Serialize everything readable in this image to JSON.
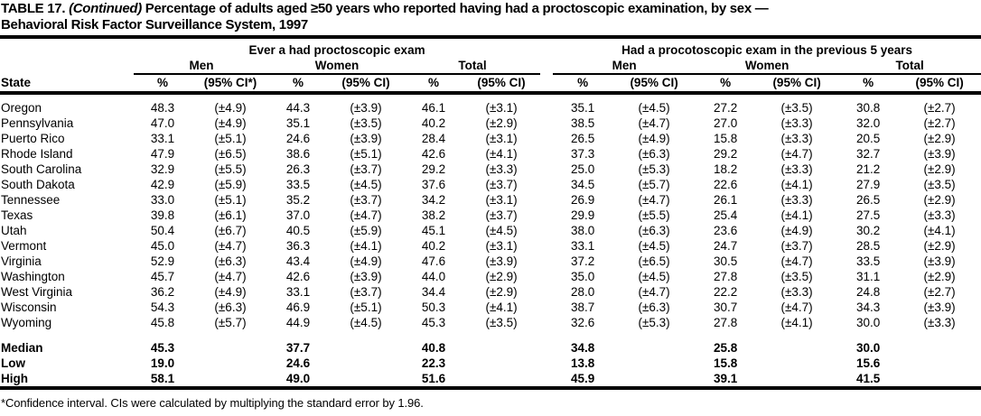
{
  "colors": {
    "text": "#000000",
    "background": "#ffffff",
    "rule": "#000000"
  },
  "title": {
    "line1_prefix": "TABLE 17.",
    "line1_continued": "(Continued)",
    "line1_rest": "Percentage of adults aged ≥50 years who reported having had a proctoscopic examination, by sex —",
    "line2": "Behavioral Risk Factor Surveillance System, 1997"
  },
  "table": {
    "state_header": "State",
    "groups": [
      {
        "title": "Ever a had proctoscopic exam",
        "subgroups": [
          {
            "label": "Men",
            "pct": "%",
            "ci": "(95% CI*)"
          },
          {
            "label": "Women",
            "pct": "%",
            "ci": "(95% CI)"
          },
          {
            "label": "Total",
            "pct": "%",
            "ci": "(95% CI)"
          }
        ]
      },
      {
        "title": "Had a procotoscopic exam in the previous 5 years",
        "subgroups": [
          {
            "label": "Men",
            "pct": "%",
            "ci": "(95% CI)"
          },
          {
            "label": "Women",
            "pct": "%",
            "ci": "(95% CI)"
          },
          {
            "label": "Total",
            "pct": "%",
            "ci": "(95% CI)"
          }
        ]
      }
    ],
    "rows": [
      {
        "state": "Oregon",
        "values": [
          "48.3",
          "(±4.9)",
          "44.3",
          "(±3.9)",
          "46.1",
          "(±3.1)",
          "35.1",
          "(±4.5)",
          "27.2",
          "(±3.5)",
          "30.8",
          "(±2.7)"
        ]
      },
      {
        "state": "Pennsylvania",
        "values": [
          "47.0",
          "(±4.9)",
          "35.1",
          "(±3.5)",
          "40.2",
          "(±2.9)",
          "38.5",
          "(±4.7)",
          "27.0",
          "(±3.3)",
          "32.0",
          "(±2.7)"
        ]
      },
      {
        "state": "Puerto Rico",
        "values": [
          "33.1",
          "(±5.1)",
          "24.6",
          "(±3.9)",
          "28.4",
          "(±3.1)",
          "26.5",
          "(±4.9)",
          "15.8",
          "(±3.3)",
          "20.5",
          "(±2.9)"
        ]
      },
      {
        "state": "Rhode Island",
        "values": [
          "47.9",
          "(±6.5)",
          "38.6",
          "(±5.1)",
          "42.6",
          "(±4.1)",
          "37.3",
          "(±6.3)",
          "29.2",
          "(±4.7)",
          "32.7",
          "(±3.9)"
        ]
      },
      {
        "state": "South Carolina",
        "values": [
          "32.9",
          "(±5.5)",
          "26.3",
          "(±3.7)",
          "29.2",
          "(±3.3)",
          "25.0",
          "(±5.3)",
          "18.2",
          "(±3.3)",
          "21.2",
          "(±2.9)"
        ]
      },
      {
        "state": "South Dakota",
        "values": [
          "42.9",
          "(±5.9)",
          "33.5",
          "(±4.5)",
          "37.6",
          "(±3.7)",
          "34.5",
          "(±5.7)",
          "22.6",
          "(±4.1)",
          "27.9",
          "(±3.5)"
        ]
      },
      {
        "state": "Tennessee",
        "values": [
          "33.0",
          "(±5.1)",
          "35.2",
          "(±3.7)",
          "34.2",
          "(±3.1)",
          "26.9",
          "(±4.7)",
          "26.1",
          "(±3.3)",
          "26.5",
          "(±2.9)"
        ]
      },
      {
        "state": "Texas",
        "values": [
          "39.8",
          "(±6.1)",
          "37.0",
          "(±4.7)",
          "38.2",
          "(±3.7)",
          "29.9",
          "(±5.5)",
          "25.4",
          "(±4.1)",
          "27.5",
          "(±3.3)"
        ]
      },
      {
        "state": "Utah",
        "values": [
          "50.4",
          "(±6.7)",
          "40.5",
          "(±5.9)",
          "45.1",
          "(±4.5)",
          "38.0",
          "(±6.3)",
          "23.6",
          "(±4.9)",
          "30.2",
          "(±4.1)"
        ]
      },
      {
        "state": "Vermont",
        "values": [
          "45.0",
          "(±4.7)",
          "36.3",
          "(±4.1)",
          "40.2",
          "(±3.1)",
          "33.1",
          "(±4.5)",
          "24.7",
          "(±3.7)",
          "28.5",
          "(±2.9)"
        ]
      },
      {
        "state": "Virginia",
        "values": [
          "52.9",
          "(±6.3)",
          "43.4",
          "(±4.9)",
          "47.6",
          "(±3.9)",
          "37.2",
          "(±6.5)",
          "30.5",
          "(±4.7)",
          "33.5",
          "(±3.9)"
        ]
      },
      {
        "state": "Washington",
        "values": [
          "45.7",
          "(±4.7)",
          "42.6",
          "(±3.9)",
          "44.0",
          "(±2.9)",
          "35.0",
          "(±4.5)",
          "27.8",
          "(±3.5)",
          "31.1",
          "(±2.9)"
        ]
      },
      {
        "state": "West Virginia",
        "values": [
          "36.2",
          "(±4.9)",
          "33.1",
          "(±3.7)",
          "34.4",
          "(±2.9)",
          "28.0",
          "(±4.7)",
          "22.2",
          "(±3.3)",
          "24.8",
          "(±2.7)"
        ]
      },
      {
        "state": "Wisconsin",
        "values": [
          "54.3",
          "(±6.3)",
          "46.9",
          "(±5.1)",
          "50.3",
          "(±4.1)",
          "38.7",
          "(±6.3)",
          "30.7",
          "(±4.7)",
          "34.3",
          "(±3.9)"
        ]
      },
      {
        "state": "Wyoming",
        "values": [
          "45.8",
          "(±5.7)",
          "44.9",
          "(±4.5)",
          "45.3",
          "(±3.5)",
          "32.6",
          "(±5.3)",
          "27.8",
          "(±4.1)",
          "30.0",
          "(±3.3)"
        ]
      }
    ],
    "summary_rows": [
      {
        "label": "Median",
        "values": [
          "45.3",
          "",
          "37.7",
          "",
          "40.8",
          "",
          "34.8",
          "",
          "25.8",
          "",
          "30.0",
          ""
        ]
      },
      {
        "label": "Low",
        "values": [
          "19.0",
          "",
          "24.6",
          "",
          "22.3",
          "",
          "13.8",
          "",
          "15.8",
          "",
          "15.6",
          ""
        ]
      },
      {
        "label": "High",
        "values": [
          "58.1",
          "",
          "49.0",
          "",
          "51.6",
          "",
          "45.9",
          "",
          "39.1",
          "",
          "41.5",
          ""
        ]
      }
    ]
  },
  "footnote": "*Confidence interval. CIs were calculated by multiplying the standard error by 1.96."
}
